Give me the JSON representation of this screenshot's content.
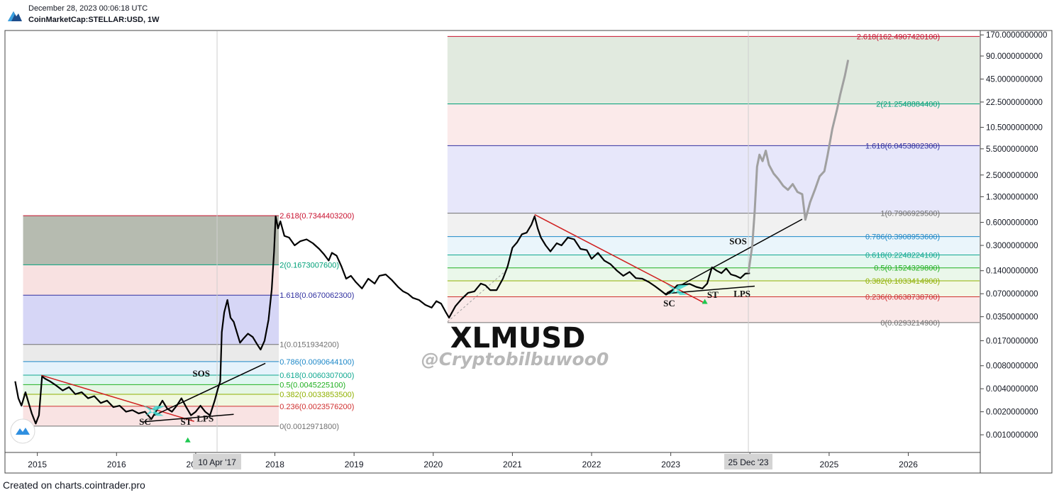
{
  "header": {
    "date": "December 28, 2023 00:06:18 UTC",
    "symbol": "CoinMarketCap:STELLAR:USD, 1W",
    "logo_icon": "cointrader-logo-icon"
  },
  "footer": {
    "credit": "Created on charts.cointrader.pro"
  },
  "chart_data": {
    "type": "line",
    "title": "XLMUSD",
    "watermark": "@Cryptobilbuwoo0",
    "y_scale": "log",
    "ylim": [
      0.0006,
      190
    ],
    "xlim": [
      2014.6,
      2026.9
    ],
    "y_ticks": [
      "170.0000000000",
      "90.0000000000",
      "45.0000000000",
      "22.5000000000",
      "10.5000000000",
      "5.5000000000",
      "2.5000000000",
      "1.3000000000",
      "0.6000000000",
      "0.3000000000",
      "0.1400000000",
      "0.0700000000",
      "0.0350000000",
      "0.0170000000",
      "0.0080000000",
      "0.0040000000",
      "0.0020000000",
      "0.0010000000"
    ],
    "y_tick_values": [
      170,
      90,
      45,
      22.5,
      10.5,
      5.5,
      2.5,
      1.3,
      0.6,
      0.3,
      0.14,
      0.07,
      0.035,
      0.017,
      0.008,
      0.004,
      0.002,
      0.001
    ],
    "x_ticks": [
      "2015",
      "2016",
      "2017",
      "2018",
      "2019",
      "2020",
      "2021",
      "2022",
      "2023",
      "2024",
      "2025",
      "2026"
    ],
    "x_tick_values": [
      2015,
      2016,
      2017,
      2018,
      2019,
      2020,
      2021,
      2022,
      2023,
      2024,
      2025,
      2026
    ],
    "cursor_labels": [
      {
        "text": "10 Apr '17",
        "x": 2017.27
      },
      {
        "text": "25 Dec '23",
        "x": 2023.98
      }
    ],
    "series": [
      {
        "color": "#000000",
        "points": [
          [
            2014.72,
            0.005
          ],
          [
            2014.76,
            0.003
          ],
          [
            2014.8,
            0.0024
          ],
          [
            2014.85,
            0.0036
          ],
          [
            2014.89,
            0.0026
          ],
          [
            2014.93,
            0.0019
          ],
          [
            2014.98,
            0.0014
          ],
          [
            2015.02,
            0.0018
          ],
          [
            2015.06,
            0.0058
          ],
          [
            2015.1,
            0.0054
          ],
          [
            2015.16,
            0.005
          ],
          [
            2015.24,
            0.0044
          ],
          [
            2015.32,
            0.0038
          ],
          [
            2015.4,
            0.0042
          ],
          [
            2015.48,
            0.0034
          ],
          [
            2015.56,
            0.0036
          ],
          [
            2015.64,
            0.003
          ],
          [
            2015.72,
            0.0032
          ],
          [
            2015.8,
            0.0026
          ],
          [
            2015.88,
            0.0028
          ],
          [
            2015.96,
            0.0023
          ],
          [
            2016.04,
            0.0024
          ],
          [
            2016.12,
            0.002
          ],
          [
            2016.2,
            0.0021
          ],
          [
            2016.28,
            0.0019
          ],
          [
            2016.36,
            0.002
          ],
          [
            2016.44,
            0.0016
          ],
          [
            2016.52,
            0.0022
          ],
          [
            2016.58,
            0.0028
          ],
          [
            2016.64,
            0.0022
          ],
          [
            2016.7,
            0.002
          ],
          [
            2016.76,
            0.0024
          ],
          [
            2016.82,
            0.003
          ],
          [
            2016.88,
            0.0023
          ],
          [
            2016.94,
            0.0018
          ],
          [
            2017.0,
            0.002
          ],
          [
            2017.06,
            0.0024
          ],
          [
            2017.12,
            0.002
          ],
          [
            2017.18,
            0.0018
          ],
          [
            2017.24,
            0.0028
          ],
          [
            2017.28,
            0.004
          ],
          [
            2017.31,
            0.005
          ],
          [
            2017.33,
            0.022
          ],
          [
            2017.36,
            0.04
          ],
          [
            2017.4,
            0.058
          ],
          [
            2017.44,
            0.034
          ],
          [
            2017.48,
            0.03
          ],
          [
            2017.52,
            0.022
          ],
          [
            2017.56,
            0.016
          ],
          [
            2017.6,
            0.018
          ],
          [
            2017.66,
            0.021
          ],
          [
            2017.72,
            0.019
          ],
          [
            2017.78,
            0.015
          ],
          [
            2017.82,
            0.013
          ],
          [
            2017.87,
            0.017
          ],
          [
            2017.92,
            0.032
          ],
          [
            2017.96,
            0.08
          ],
          [
            2017.99,
            0.25
          ],
          [
            2018.01,
            0.72
          ],
          [
            2018.04,
            0.5
          ],
          [
            2018.07,
            0.62
          ],
          [
            2018.12,
            0.4
          ],
          [
            2018.18,
            0.38
          ],
          [
            2018.25,
            0.3
          ],
          [
            2018.32,
            0.34
          ],
          [
            2018.4,
            0.36
          ],
          [
            2018.48,
            0.32
          ],
          [
            2018.56,
            0.27
          ],
          [
            2018.62,
            0.23
          ],
          [
            2018.68,
            0.19
          ],
          [
            2018.72,
            0.24
          ],
          [
            2018.78,
            0.22
          ],
          [
            2018.84,
            0.16
          ],
          [
            2018.9,
            0.11
          ],
          [
            2018.96,
            0.12
          ],
          [
            2019.02,
            0.1
          ],
          [
            2019.1,
            0.082
          ],
          [
            2019.18,
            0.11
          ],
          [
            2019.26,
            0.095
          ],
          [
            2019.32,
            0.12
          ],
          [
            2019.4,
            0.125
          ],
          [
            2019.48,
            0.105
          ],
          [
            2019.56,
            0.085
          ],
          [
            2019.62,
            0.075
          ],
          [
            2019.68,
            0.07
          ],
          [
            2019.74,
            0.062
          ],
          [
            2019.82,
            0.058
          ],
          [
            2019.9,
            0.05
          ],
          [
            2019.98,
            0.046
          ],
          [
            2020.04,
            0.056
          ],
          [
            2020.1,
            0.052
          ],
          [
            2020.16,
            0.04
          ],
          [
            2020.2,
            0.034
          ],
          [
            2020.28,
            0.048
          ],
          [
            2020.36,
            0.06
          ],
          [
            2020.44,
            0.072
          ],
          [
            2020.52,
            0.075
          ],
          [
            2020.6,
            0.095
          ],
          [
            2020.66,
            0.09
          ],
          [
            2020.72,
            0.078
          ],
          [
            2020.8,
            0.078
          ],
          [
            2020.88,
            0.11
          ],
          [
            2020.94,
            0.16
          ],
          [
            2021.0,
            0.28
          ],
          [
            2021.06,
            0.33
          ],
          [
            2021.12,
            0.42
          ],
          [
            2021.18,
            0.44
          ],
          [
            2021.24,
            0.56
          ],
          [
            2021.28,
            0.72
          ],
          [
            2021.32,
            0.5
          ],
          [
            2021.36,
            0.38
          ],
          [
            2021.42,
            0.3
          ],
          [
            2021.48,
            0.25
          ],
          [
            2021.56,
            0.32
          ],
          [
            2021.62,
            0.3
          ],
          [
            2021.7,
            0.38
          ],
          [
            2021.78,
            0.36
          ],
          [
            2021.86,
            0.27
          ],
          [
            2021.94,
            0.26
          ],
          [
            2022.0,
            0.2
          ],
          [
            2022.08,
            0.24
          ],
          [
            2022.16,
            0.19
          ],
          [
            2022.24,
            0.17
          ],
          [
            2022.32,
            0.14
          ],
          [
            2022.4,
            0.12
          ],
          [
            2022.48,
            0.135
          ],
          [
            2022.56,
            0.112
          ],
          [
            2022.64,
            0.11
          ],
          [
            2022.72,
            0.1
          ],
          [
            2022.8,
            0.088
          ],
          [
            2022.88,
            0.076
          ],
          [
            2022.94,
            0.068
          ],
          [
            2023.0,
            0.074
          ],
          [
            2023.08,
            0.09
          ],
          [
            2023.16,
            0.092
          ],
          [
            2023.24,
            0.094
          ],
          [
            2023.32,
            0.086
          ],
          [
            2023.4,
            0.082
          ],
          [
            2023.46,
            0.095
          ],
          [
            2023.52,
            0.155
          ],
          [
            2023.58,
            0.14
          ],
          [
            2023.64,
            0.13
          ],
          [
            2023.7,
            0.15
          ],
          [
            2023.76,
            0.125
          ],
          [
            2023.82,
            0.12
          ],
          [
            2023.88,
            0.112
          ],
          [
            2023.94,
            0.128
          ],
          [
            2024.0,
            0.13
          ]
        ]
      },
      {
        "color": "#a0a0a0",
        "points": [
          [
            2023.98,
            0.13
          ],
          [
            2024.03,
            0.3
          ],
          [
            2024.06,
            0.85
          ],
          [
            2024.09,
            3.2
          ],
          [
            2024.12,
            4.6
          ],
          [
            2024.16,
            3.8
          ],
          [
            2024.2,
            5.2
          ],
          [
            2024.24,
            3.4
          ],
          [
            2024.3,
            2.6
          ],
          [
            2024.36,
            2.2
          ],
          [
            2024.42,
            1.8
          ],
          [
            2024.48,
            1.6
          ],
          [
            2024.54,
            1.9
          ],
          [
            2024.6,
            1.5
          ],
          [
            2024.66,
            1.4
          ],
          [
            2024.7,
            0.65
          ],
          [
            2024.76,
            1.1
          ],
          [
            2024.82,
            1.6
          ],
          [
            2024.88,
            2.4
          ],
          [
            2024.94,
            2.8
          ],
          [
            2024.98,
            4.5
          ],
          [
            2025.04,
            10.0
          ],
          [
            2025.1,
            18.0
          ],
          [
            2025.14,
            28.0
          ],
          [
            2025.2,
            50.0
          ],
          [
            2025.24,
            80.0
          ]
        ]
      }
    ],
    "wyckoff_labels": [
      {
        "text": "SC",
        "x": 2016.36,
        "y": 0.00135
      },
      {
        "text": "ST",
        "x": 2016.88,
        "y": 0.00135
      },
      {
        "text": "LPS",
        "x": 2017.12,
        "y": 0.00148
      },
      {
        "text": "SOS",
        "x": 2017.07,
        "y": 0.0058
      },
      {
        "text": "SC",
        "x": 2022.98,
        "y": 0.048
      },
      {
        "text": "ST",
        "x": 2023.53,
        "y": 0.062
      },
      {
        "text": "LPS",
        "x": 2023.9,
        "y": 0.064
      },
      {
        "text": "SOS",
        "x": 2023.85,
        "y": 0.31
      }
    ],
    "fib_left": {
      "x_range": [
        2014.82,
        2018.05
      ],
      "levels": [
        {
          "label": "2.618(0.7344403200)",
          "value": 0.7344,
          "color": "#c8102e"
        },
        {
          "label": "2(0.1673007600)",
          "value": 0.1673,
          "color": "#00a078"
        },
        {
          "label": "1.618(0.0670062300)",
          "value": 0.067,
          "color": "#3030a0"
        },
        {
          "label": "1(0.0151934200)",
          "value": 0.01519,
          "color": "#707070"
        },
        {
          "label": "0.786(0.0090644100)",
          "value": 0.009064,
          "color": "#1e88c8"
        },
        {
          "label": "0.618(0.0060307000)",
          "value": 0.006031,
          "color": "#10a890"
        },
        {
          "label": "0.5(0.0045225100)",
          "value": 0.004523,
          "color": "#20b020"
        },
        {
          "label": "0.382(0.0033853500)",
          "value": 0.003385,
          "color": "#90b000"
        },
        {
          "label": "0.236(0.0023576200)",
          "value": 0.002358,
          "color": "#d03030"
        },
        {
          "label": "0(0.0012971800)",
          "value": 0.001297,
          "color": "#707070"
        }
      ]
    },
    "fib_right": {
      "x_range": [
        2020.18,
        2026.9
      ],
      "levels": [
        {
          "label": "2.618(162.4907420100)",
          "value": 162.49,
          "color": "#c8102e"
        },
        {
          "label": "2(21.2548884400)",
          "value": 21.255,
          "color": "#00a078"
        },
        {
          "label": "1.618(6.0453802300)",
          "value": 6.0454,
          "color": "#3030a0"
        },
        {
          "label": "1(0.7906929500)",
          "value": 0.7907,
          "color": "#707070"
        },
        {
          "label": "0.786(0.3908953600)",
          "value": 0.3909,
          "color": "#1e88c8"
        },
        {
          "label": "0.618(0.2248224100)",
          "value": 0.2248,
          "color": "#10a890"
        },
        {
          "label": "0.5(0.1524329800)",
          "value": 0.1524,
          "color": "#20b020"
        },
        {
          "label": "0.382(0.1033414900)",
          "value": 0.1033,
          "color": "#90b000"
        },
        {
          "label": "0.236(0.0638738700)",
          "value": 0.06387,
          "color": "#d03030"
        },
        {
          "label": "0(0.0293214900)",
          "value": 0.02932,
          "color": "#707070"
        }
      ]
    },
    "fib_left_zones": [
      "#7a8470",
      "#f3c9c9",
      "#b5b5ee",
      "#d8d8d8",
      "#d0e8f8",
      "#c4eee6",
      "#cfeecf",
      "#e5f2c4",
      "#f4cccc"
    ],
    "fib_right_zones": [
      "#c8d8c4",
      "#f7d8d8",
      "#d4d4f6",
      "#e6e6e6",
      "#d8ecf8",
      "#cff0e6",
      "#d8f0d8",
      "#e9f3d0",
      "#f6d6d6"
    ],
    "trendlines": [
      {
        "color": "#d02020",
        "from": [
          2015.05,
          0.006
        ],
        "to": [
          2016.98,
          0.0015
        ]
      },
      {
        "color": "#000000",
        "from": [
          2016.34,
          0.00148
        ],
        "to": [
          2017.48,
          0.00185
        ]
      },
      {
        "color": "#000000",
        "from": [
          2016.48,
          0.0018
        ],
        "to": [
          2017.88,
          0.0086
        ]
      },
      {
        "color": "#d02020",
        "from": [
          2021.28,
          0.76
        ],
        "to": [
          2023.44,
          0.052
        ]
      },
      {
        "color": "#000000",
        "from": [
          2022.92,
          0.07
        ],
        "to": [
          2024.06,
          0.088
        ]
      },
      {
        "color": "#000000",
        "from": [
          2022.95,
          0.072
        ],
        "to": [
          2024.66,
          0.66
        ]
      }
    ],
    "dashed_line": {
      "color": "#a0a0a0",
      "from": [
        2020.18,
        0.03
      ],
      "to": [
        2020.95,
        0.15
      ]
    },
    "accumulation_marks": [
      {
        "color": "#40d8d0",
        "center": [
          2016.47,
          0.0021
        ]
      },
      {
        "color": "#40d8d0",
        "center": [
          2023.08,
          0.08
        ]
      }
    ],
    "signal_markers": [
      {
        "color": "#1ec850",
        "x": 2016.9,
        "y": 0.00085
      },
      {
        "color": "#1ec850",
        "x": 2023.43,
        "y": 0.055
      }
    ]
  }
}
